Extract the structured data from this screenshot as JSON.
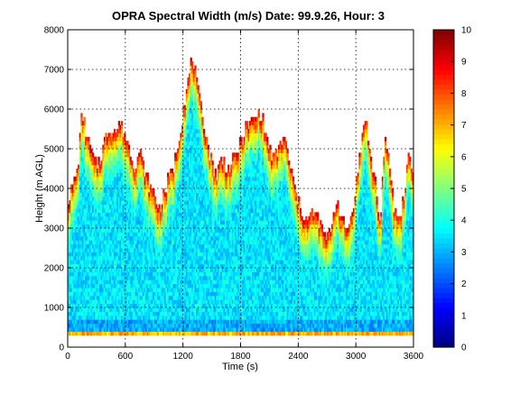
{
  "chart_data": {
    "type": "heatmap",
    "title": "OPRA Spectral Width (m/s)  Date: 99.9.26, Hour: 3",
    "xlabel": "Time (s)",
    "ylabel": "Height (m AGL)",
    "xlim": [
      0,
      3600
    ],
    "ylim": [
      0,
      8000
    ],
    "xticks": [
      0,
      600,
      1200,
      1800,
      2400,
      3000,
      3600
    ],
    "yticks": [
      0,
      1000,
      2000,
      3000,
      4000,
      5000,
      6000,
      7000,
      8000
    ],
    "grid": true,
    "colormap": "jet",
    "colorbar": {
      "range": [
        0,
        10
      ],
      "ticks": [
        0,
        1,
        2,
        3,
        4,
        5,
        6,
        7,
        8,
        9,
        10
      ],
      "label_precision": 0
    },
    "data_bottom_height": 300,
    "echo_top_height": [
      {
        "t": 0,
        "h": 3700
      },
      {
        "t": 50,
        "h": 4100
      },
      {
        "t": 100,
        "h": 4500
      },
      {
        "t": 150,
        "h": 6000
      },
      {
        "t": 200,
        "h": 5400
      },
      {
        "t": 250,
        "h": 4900
      },
      {
        "t": 300,
        "h": 4600
      },
      {
        "t": 350,
        "h": 4900
      },
      {
        "t": 400,
        "h": 5400
      },
      {
        "t": 450,
        "h": 5600
      },
      {
        "t": 500,
        "h": 5500
      },
      {
        "t": 550,
        "h": 5700
      },
      {
        "t": 600,
        "h": 5400
      },
      {
        "t": 650,
        "h": 5000
      },
      {
        "t": 700,
        "h": 4600
      },
      {
        "t": 750,
        "h": 5000
      },
      {
        "t": 800,
        "h": 4500
      },
      {
        "t": 850,
        "h": 4100
      },
      {
        "t": 900,
        "h": 3900
      },
      {
        "t": 950,
        "h": 3500
      },
      {
        "t": 1000,
        "h": 3900
      },
      {
        "t": 1050,
        "h": 4300
      },
      {
        "t": 1100,
        "h": 4600
      },
      {
        "t": 1150,
        "h": 5200
      },
      {
        "t": 1200,
        "h": 6000
      },
      {
        "t": 1250,
        "h": 6700
      },
      {
        "t": 1300,
        "h": 7400
      },
      {
        "t": 1350,
        "h": 6600
      },
      {
        "t": 1400,
        "h": 5900
      },
      {
        "t": 1450,
        "h": 5300
      },
      {
        "t": 1500,
        "h": 4700
      },
      {
        "t": 1550,
        "h": 4400
      },
      {
        "t": 1600,
        "h": 4800
      },
      {
        "t": 1650,
        "h": 4600
      },
      {
        "t": 1700,
        "h": 4600
      },
      {
        "t": 1750,
        "h": 4900
      },
      {
        "t": 1800,
        "h": 5200
      },
      {
        "t": 1850,
        "h": 5600
      },
      {
        "t": 1900,
        "h": 5700
      },
      {
        "t": 1950,
        "h": 5800
      },
      {
        "t": 2000,
        "h": 6000
      },
      {
        "t": 2050,
        "h": 5600
      },
      {
        "t": 2100,
        "h": 5000
      },
      {
        "t": 2150,
        "h": 4800
      },
      {
        "t": 2200,
        "h": 5100
      },
      {
        "t": 2250,
        "h": 5400
      },
      {
        "t": 2300,
        "h": 4800
      },
      {
        "t": 2350,
        "h": 4200
      },
      {
        "t": 2400,
        "h": 3700
      },
      {
        "t": 2450,
        "h": 3400
      },
      {
        "t": 2500,
        "h": 3200
      },
      {
        "t": 2550,
        "h": 3500
      },
      {
        "t": 2600,
        "h": 3300
      },
      {
        "t": 2650,
        "h": 3000
      },
      {
        "t": 2700,
        "h": 2700
      },
      {
        "t": 2750,
        "h": 3200
      },
      {
        "t": 2800,
        "h": 3800
      },
      {
        "t": 2850,
        "h": 3300
      },
      {
        "t": 2900,
        "h": 3000
      },
      {
        "t": 2950,
        "h": 3300
      },
      {
        "t": 3000,
        "h": 4100
      },
      {
        "t": 3050,
        "h": 5000
      },
      {
        "t": 3100,
        "h": 6000
      },
      {
        "t": 3150,
        "h": 4800
      },
      {
        "t": 3200,
        "h": 4300
      },
      {
        "t": 3250,
        "h": 3100
      },
      {
        "t": 3300,
        "h": 5200
      },
      {
        "t": 3350,
        "h": 4700
      },
      {
        "t": 3400,
        "h": 3500
      },
      {
        "t": 3450,
        "h": 3300
      },
      {
        "t": 3500,
        "h": 3800
      },
      {
        "t": 3550,
        "h": 5000
      },
      {
        "t": 3600,
        "h": 4300
      }
    ],
    "value_summary": {
      "interior_typical": 3.5,
      "echo_top_edge": 9.5,
      "near_ground": 7
    }
  }
}
